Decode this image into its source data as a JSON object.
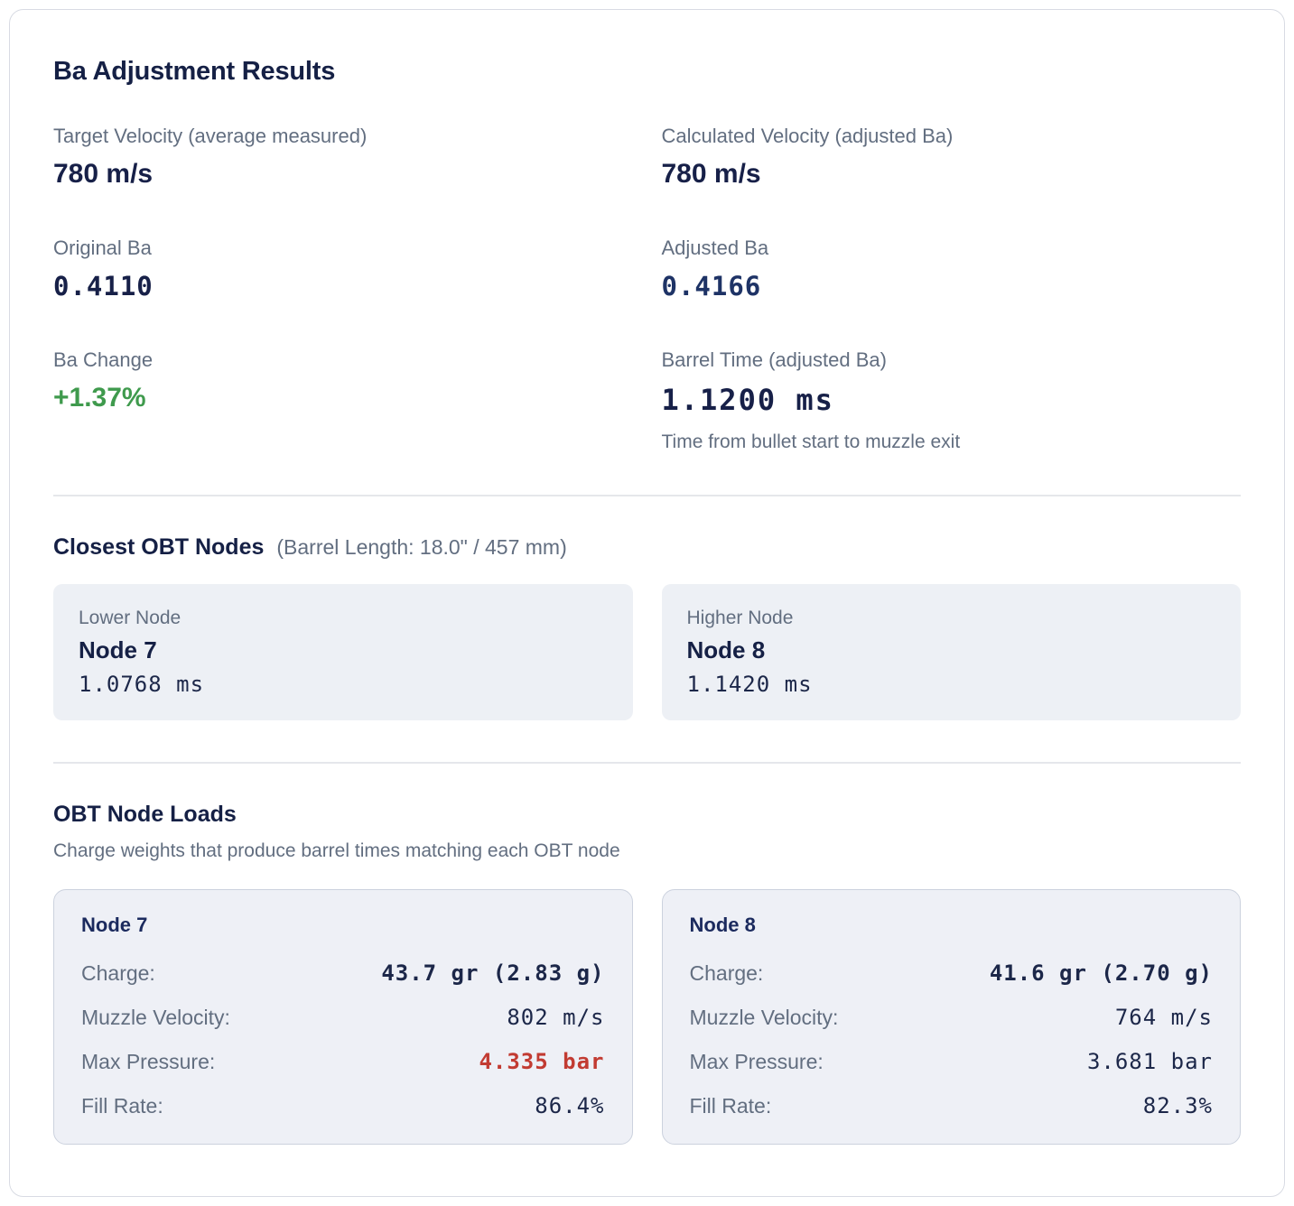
{
  "card": {
    "title": "Ba Adjustment Results"
  },
  "colors": {
    "heading_navy": "#152045",
    "value_navy": "#172048",
    "adjusted_value_blue": "#1e3366",
    "label_gray": "#626e80",
    "positive_green": "#3f9a4d",
    "pressure_alert_red": "#c23b32",
    "panel_bg": "#edf0f5",
    "card_border": "#d8dbe3",
    "divider": "#e5e7eb"
  },
  "stats": {
    "target_velocity": {
      "label": "Target Velocity (average measured)",
      "value": "780 m/s"
    },
    "calculated_velocity": {
      "label": "Calculated Velocity (adjusted Ba)",
      "value": "780 m/s"
    },
    "original_ba": {
      "label": "Original Ba",
      "value": "0.4110"
    },
    "adjusted_ba": {
      "label": "Adjusted Ba",
      "value": "0.4166"
    },
    "ba_change": {
      "label": "Ba Change",
      "value": "+1.37%"
    },
    "barrel_time": {
      "label": "Barrel Time (adjusted Ba)",
      "value": "1.1200 ms",
      "note": "Time from bullet start to muzzle exit"
    }
  },
  "obt_nodes": {
    "heading": "Closest OBT Nodes",
    "note": "(Barrel Length: 18.0\" / 457 mm)",
    "lower": {
      "label": "Lower Node",
      "name": "Node 7",
      "time": "1.0768 ms"
    },
    "higher": {
      "label": "Higher Node",
      "name": "Node 8",
      "time": "1.1420 ms"
    }
  },
  "node_loads": {
    "heading": "OBT Node Loads",
    "subtitle": "Charge weights that produce barrel times matching each OBT node",
    "cards": [
      {
        "name": "Node 7",
        "charge_label": "Charge:",
        "charge_value": "43.7 gr (2.83 g)",
        "mv_label": "Muzzle Velocity:",
        "mv_value": "802 m/s",
        "mp_label": "Max Pressure:",
        "mp_value": "4.335 bar",
        "mp_alert": true,
        "fr_label": "Fill Rate:",
        "fr_value": "86.4%"
      },
      {
        "name": "Node 8",
        "charge_label": "Charge:",
        "charge_value": "41.6 gr (2.70 g)",
        "mv_label": "Muzzle Velocity:",
        "mv_value": "764 m/s",
        "mp_label": "Max Pressure:",
        "mp_value": "3.681 bar",
        "mp_alert": false,
        "fr_label": "Fill Rate:",
        "fr_value": "82.3%"
      }
    ]
  }
}
